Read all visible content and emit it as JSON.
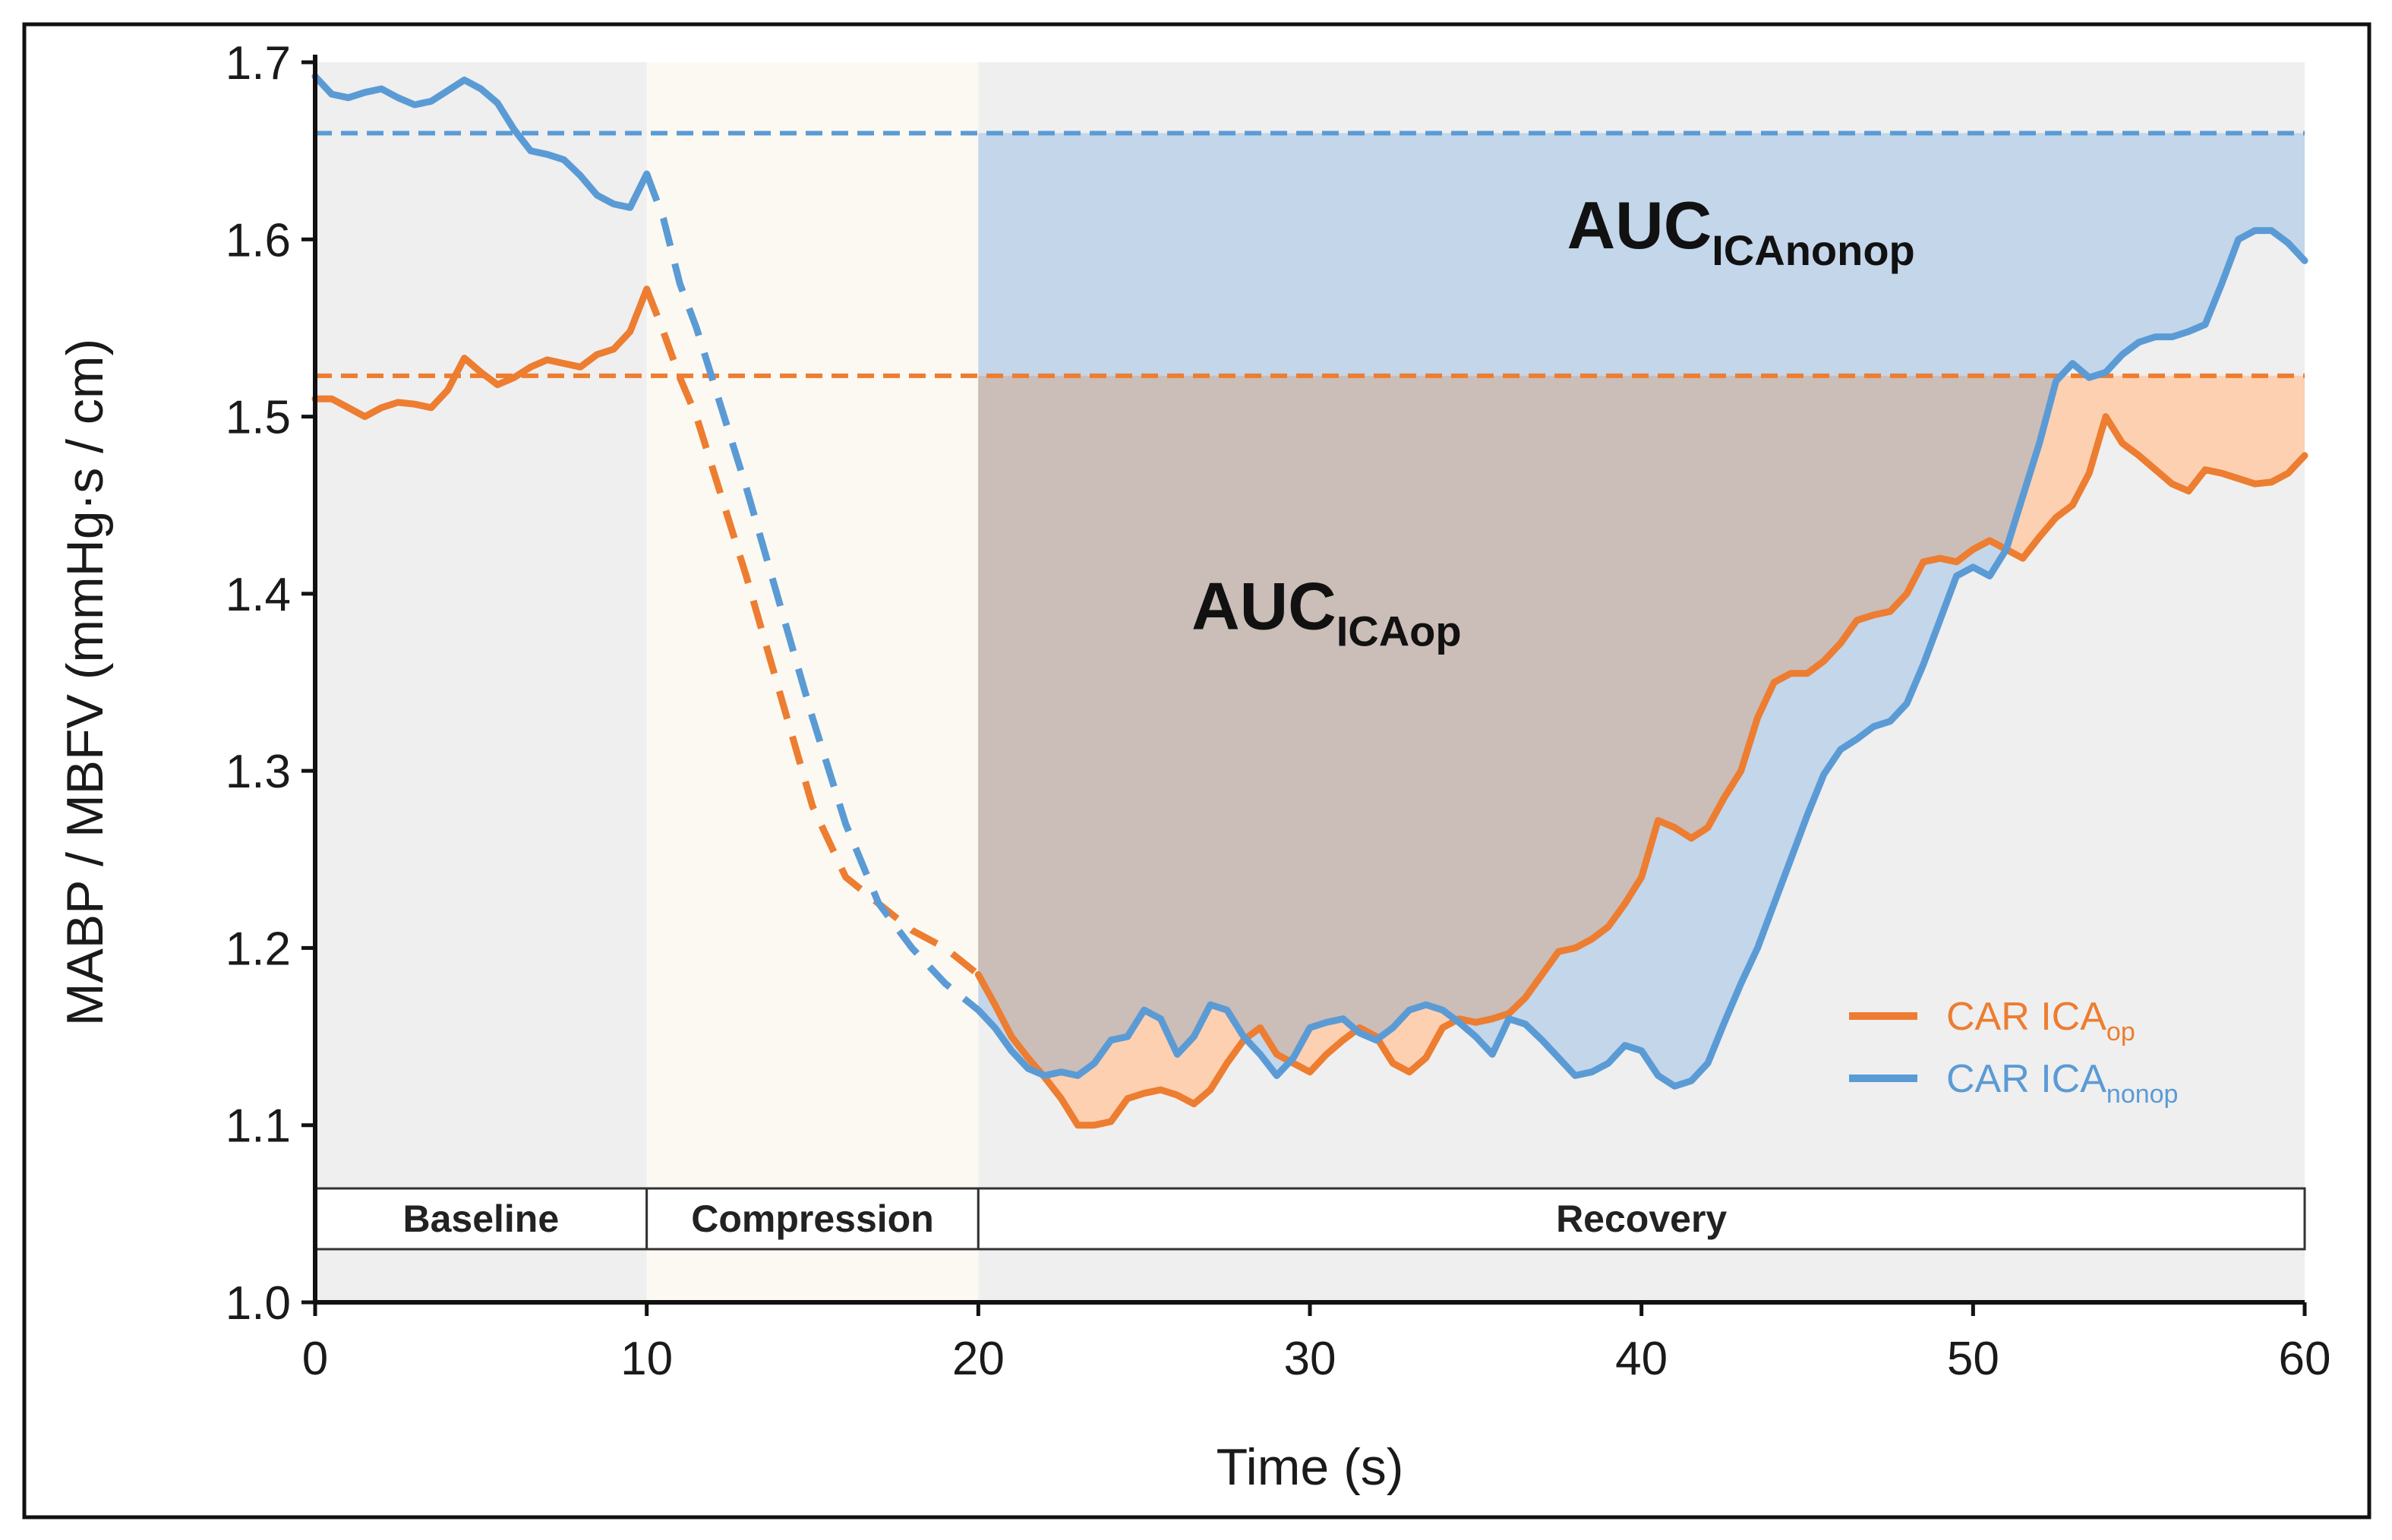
{
  "chart_data": {
    "type": "line",
    "title": "",
    "xlabel": "Time (s)",
    "ylabel": "MABP / MBFV (mmHg·s / cm)",
    "xlim": [
      0,
      60
    ],
    "ylim": [
      1.0,
      1.7
    ],
    "x_ticks": [
      0,
      10,
      20,
      30,
      40,
      50,
      60
    ],
    "y_ticks": [
      1.0,
      1.1,
      1.2,
      1.3,
      1.4,
      1.5,
      1.6,
      1.7
    ],
    "x_tick_labels": [
      "0",
      "10",
      "20",
      "30",
      "40",
      "50",
      "60"
    ],
    "y_tick_labels": [
      "1.0",
      "1.1",
      "1.2",
      "1.3",
      "1.4",
      "1.5",
      "1.6",
      "1.7"
    ],
    "phases": [
      {
        "label": "Baseline",
        "start": 0,
        "end": 10,
        "color": "#efefef"
      },
      {
        "label": "Compression",
        "start": 10,
        "end": 20,
        "color": "#fbf9f2"
      },
      {
        "label": "Recovery",
        "start": 20,
        "end": 60,
        "color": "#efefef"
      }
    ],
    "series": [
      {
        "name": "CAR ICA",
        "subscript": "op",
        "color": "#ed7d31",
        "baseline": 1.523,
        "points": [
          [
            0,
            1.51
          ],
          [
            0.5,
            1.51
          ],
          [
            1,
            1.505
          ],
          [
            1.5,
            1.5
          ],
          [
            2,
            1.505
          ],
          [
            2.5,
            1.508
          ],
          [
            3,
            1.507
          ],
          [
            3.5,
            1.505
          ],
          [
            4,
            1.515
          ],
          [
            4.5,
            1.533
          ],
          [
            5,
            1.525
          ],
          [
            5.5,
            1.518
          ],
          [
            6,
            1.522
          ],
          [
            6.5,
            1.528
          ],
          [
            7,
            1.532
          ],
          [
            7.5,
            1.53
          ],
          [
            8,
            1.528
          ],
          [
            8.5,
            1.535
          ],
          [
            9,
            1.538
          ],
          [
            9.5,
            1.548
          ],
          [
            10,
            1.572
          ],
          [
            10.5,
            1.548
          ],
          [
            11,
            1.522
          ],
          [
            11.5,
            1.5
          ],
          [
            12,
            1.47
          ],
          [
            13,
            1.41
          ],
          [
            14,
            1.345
          ],
          [
            15,
            1.28
          ],
          [
            16,
            1.24
          ],
          [
            17,
            1.225
          ],
          [
            18,
            1.21
          ],
          [
            19,
            1.2
          ],
          [
            20,
            1.185
          ],
          [
            20.5,
            1.168
          ],
          [
            21,
            1.15
          ],
          [
            21.5,
            1.138
          ],
          [
            22,
            1.127
          ],
          [
            22.5,
            1.115
          ],
          [
            23,
            1.1
          ],
          [
            23.5,
            1.1
          ],
          [
            24,
            1.102
          ],
          [
            24.5,
            1.115
          ],
          [
            25,
            1.118
          ],
          [
            25.5,
            1.12
          ],
          [
            26,
            1.117
          ],
          [
            26.5,
            1.112
          ],
          [
            27,
            1.12
          ],
          [
            27.5,
            1.135
          ],
          [
            28,
            1.148
          ],
          [
            28.5,
            1.155
          ],
          [
            29,
            1.14
          ],
          [
            29.5,
            1.135
          ],
          [
            30,
            1.13
          ],
          [
            30.5,
            1.14
          ],
          [
            31,
            1.148
          ],
          [
            31.5,
            1.155
          ],
          [
            32,
            1.15
          ],
          [
            32.5,
            1.135
          ],
          [
            33,
            1.13
          ],
          [
            33.5,
            1.138
          ],
          [
            34,
            1.155
          ],
          [
            34.5,
            1.16
          ],
          [
            35,
            1.158
          ],
          [
            35.5,
            1.16
          ],
          [
            36,
            1.163
          ],
          [
            36.5,
            1.172
          ],
          [
            37,
            1.185
          ],
          [
            37.5,
            1.198
          ],
          [
            38,
            1.2
          ],
          [
            38.5,
            1.205
          ],
          [
            39,
            1.212
          ],
          [
            39.5,
            1.225
          ],
          [
            40,
            1.24
          ],
          [
            40.5,
            1.272
          ],
          [
            41,
            1.268
          ],
          [
            41.5,
            1.262
          ],
          [
            42,
            1.268
          ],
          [
            42.5,
            1.285
          ],
          [
            43,
            1.3
          ],
          [
            43.5,
            1.33
          ],
          [
            44,
            1.35
          ],
          [
            44.5,
            1.355
          ],
          [
            45,
            1.355
          ],
          [
            45.5,
            1.362
          ],
          [
            46,
            1.372
          ],
          [
            46.5,
            1.385
          ],
          [
            47,
            1.388
          ],
          [
            47.5,
            1.39
          ],
          [
            48,
            1.4
          ],
          [
            48.5,
            1.418
          ],
          [
            49,
            1.42
          ],
          [
            49.5,
            1.418
          ],
          [
            50,
            1.425
          ],
          [
            50.5,
            1.43
          ],
          [
            51,
            1.425
          ],
          [
            51.5,
            1.42
          ],
          [
            52,
            1.432
          ],
          [
            52.5,
            1.443
          ],
          [
            53,
            1.45
          ],
          [
            53.5,
            1.468
          ],
          [
            54,
            1.5
          ],
          [
            54.5,
            1.485
          ],
          [
            55,
            1.478
          ],
          [
            55.5,
            1.47
          ],
          [
            56,
            1.462
          ],
          [
            56.5,
            1.458
          ],
          [
            57,
            1.47
          ],
          [
            57.5,
            1.468
          ],
          [
            58,
            1.465
          ],
          [
            58.5,
            1.462
          ],
          [
            59,
            1.463
          ],
          [
            59.5,
            1.468
          ],
          [
            60,
            1.478
          ]
        ]
      },
      {
        "name": "CAR ICA",
        "subscript": "nonop",
        "color": "#5b9bd5",
        "baseline": 1.66,
        "points": [
          [
            0,
            1.692
          ],
          [
            0.5,
            1.682
          ],
          [
            1,
            1.68
          ],
          [
            1.5,
            1.683
          ],
          [
            2,
            1.685
          ],
          [
            2.5,
            1.68
          ],
          [
            3,
            1.676
          ],
          [
            3.5,
            1.678
          ],
          [
            4,
            1.684
          ],
          [
            4.5,
            1.69
          ],
          [
            5,
            1.685
          ],
          [
            5.5,
            1.677
          ],
          [
            6,
            1.662
          ],
          [
            6.5,
            1.65
          ],
          [
            7,
            1.648
          ],
          [
            7.5,
            1.645
          ],
          [
            8,
            1.636
          ],
          [
            8.5,
            1.625
          ],
          [
            9,
            1.62
          ],
          [
            9.5,
            1.618
          ],
          [
            10,
            1.637
          ],
          [
            10.5,
            1.612
          ],
          [
            11,
            1.575
          ],
          [
            11.5,
            1.55
          ],
          [
            12,
            1.52
          ],
          [
            13,
            1.46
          ],
          [
            14,
            1.395
          ],
          [
            15,
            1.33
          ],
          [
            16,
            1.27
          ],
          [
            17,
            1.225
          ],
          [
            18,
            1.2
          ],
          [
            19,
            1.18
          ],
          [
            20,
            1.165
          ],
          [
            20.5,
            1.155
          ],
          [
            21,
            1.142
          ],
          [
            21.5,
            1.132
          ],
          [
            22,
            1.128
          ],
          [
            22.5,
            1.13
          ],
          [
            23,
            1.128
          ],
          [
            23.5,
            1.135
          ],
          [
            24,
            1.148
          ],
          [
            24.5,
            1.15
          ],
          [
            25,
            1.165
          ],
          [
            25.5,
            1.16
          ],
          [
            26,
            1.14
          ],
          [
            26.5,
            1.15
          ],
          [
            27,
            1.168
          ],
          [
            27.5,
            1.165
          ],
          [
            28,
            1.15
          ],
          [
            28.5,
            1.14
          ],
          [
            29,
            1.128
          ],
          [
            29.5,
            1.138
          ],
          [
            30,
            1.155
          ],
          [
            30.5,
            1.158
          ],
          [
            31,
            1.16
          ],
          [
            31.5,
            1.152
          ],
          [
            32,
            1.148
          ],
          [
            32.5,
            1.155
          ],
          [
            33,
            1.165
          ],
          [
            33.5,
            1.168
          ],
          [
            34,
            1.165
          ],
          [
            34.5,
            1.158
          ],
          [
            35,
            1.15
          ],
          [
            35.5,
            1.14
          ],
          [
            36,
            1.16
          ],
          [
            36.5,
            1.157
          ],
          [
            37,
            1.148
          ],
          [
            37.5,
            1.138
          ],
          [
            38,
            1.128
          ],
          [
            38.5,
            1.13
          ],
          [
            39,
            1.135
          ],
          [
            39.5,
            1.145
          ],
          [
            40,
            1.142
          ],
          [
            40.5,
            1.128
          ],
          [
            41,
            1.122
          ],
          [
            41.5,
            1.125
          ],
          [
            42,
            1.135
          ],
          [
            42.5,
            1.158
          ],
          [
            43,
            1.18
          ],
          [
            43.5,
            1.2
          ],
          [
            44,
            1.225
          ],
          [
            44.5,
            1.25
          ],
          [
            45,
            1.275
          ],
          [
            45.5,
            1.298
          ],
          [
            46,
            1.312
          ],
          [
            46.5,
            1.318
          ],
          [
            47,
            1.325
          ],
          [
            47.5,
            1.328
          ],
          [
            48,
            1.338
          ],
          [
            48.5,
            1.36
          ],
          [
            49,
            1.385
          ],
          [
            49.5,
            1.41
          ],
          [
            50,
            1.415
          ],
          [
            50.5,
            1.41
          ],
          [
            51,
            1.425
          ],
          [
            51.5,
            1.455
          ],
          [
            52,
            1.485
          ],
          [
            52.5,
            1.52
          ],
          [
            53,
            1.53
          ],
          [
            53.5,
            1.522
          ],
          [
            54,
            1.525
          ],
          [
            54.5,
            1.535
          ],
          [
            55,
            1.542
          ],
          [
            55.5,
            1.545
          ],
          [
            56,
            1.545
          ],
          [
            56.5,
            1.548
          ],
          [
            57,
            1.552
          ],
          [
            57.5,
            1.575
          ],
          [
            58,
            1.6
          ],
          [
            58.5,
            1.605
          ],
          [
            59,
            1.605
          ],
          [
            59.5,
            1.598
          ],
          [
            60,
            1.588
          ]
        ]
      }
    ],
    "annotations": [
      {
        "text": "AUC",
        "subscript": "ICAnonop",
        "x": 43,
        "y": 1.595
      },
      {
        "text": "AUC",
        "subscript": "ICAop",
        "x": 30.5,
        "y": 1.38
      }
    ],
    "legend": {
      "position": "bottom-right"
    }
  }
}
